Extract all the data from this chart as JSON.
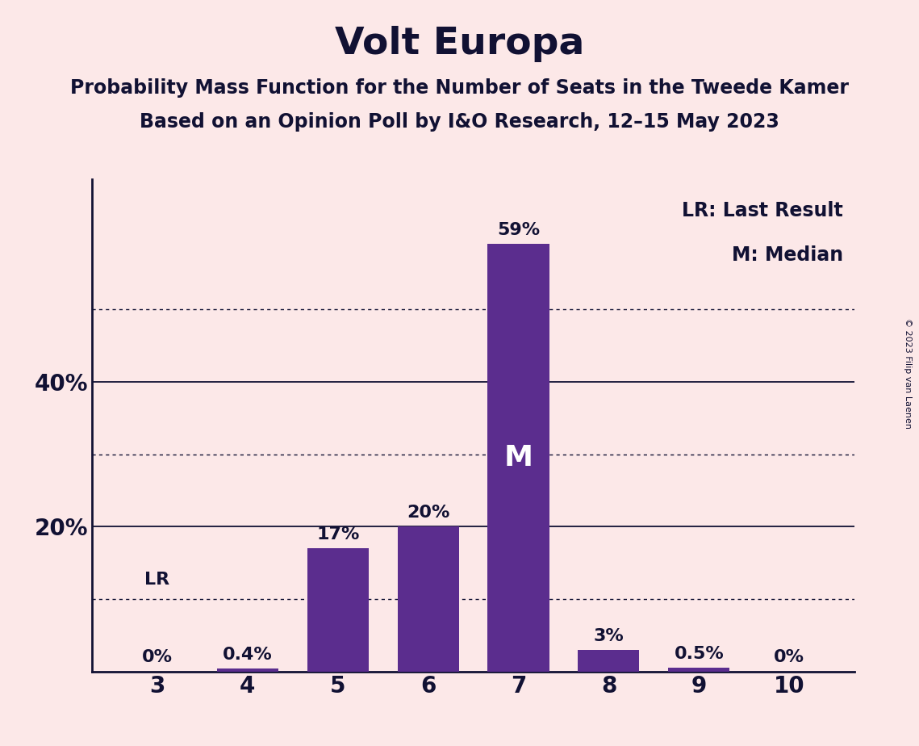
{
  "title": "Volt Europa",
  "subtitle1": "Probability Mass Function for the Number of Seats in the Tweede Kamer",
  "subtitle2": "Based on an Opinion Poll by I&O Research, 12–15 May 2023",
  "copyright_text": "© 2023 Filip van Laenen",
  "categories": [
    3,
    4,
    5,
    6,
    7,
    8,
    9,
    10
  ],
  "values": [
    0.0,
    0.4,
    17.0,
    20.0,
    59.0,
    3.0,
    0.5,
    0.0
  ],
  "bar_color": "#5b2d8e",
  "background_color": "#fce8e8",
  "text_color": "#111133",
  "median_seat": 7,
  "last_result_seat": 3,
  "yticks": [
    20,
    40
  ],
  "dotted_lines": [
    10,
    30,
    50
  ],
  "ylim": [
    0,
    68
  ],
  "legend_lr": "LR: Last Result",
  "legend_m": "M: Median",
  "bar_labels": [
    "0%",
    "0.4%",
    "17%",
    "20%",
    "59%",
    "3%",
    "0.5%",
    "0%"
  ],
  "bar_width": 0.68
}
